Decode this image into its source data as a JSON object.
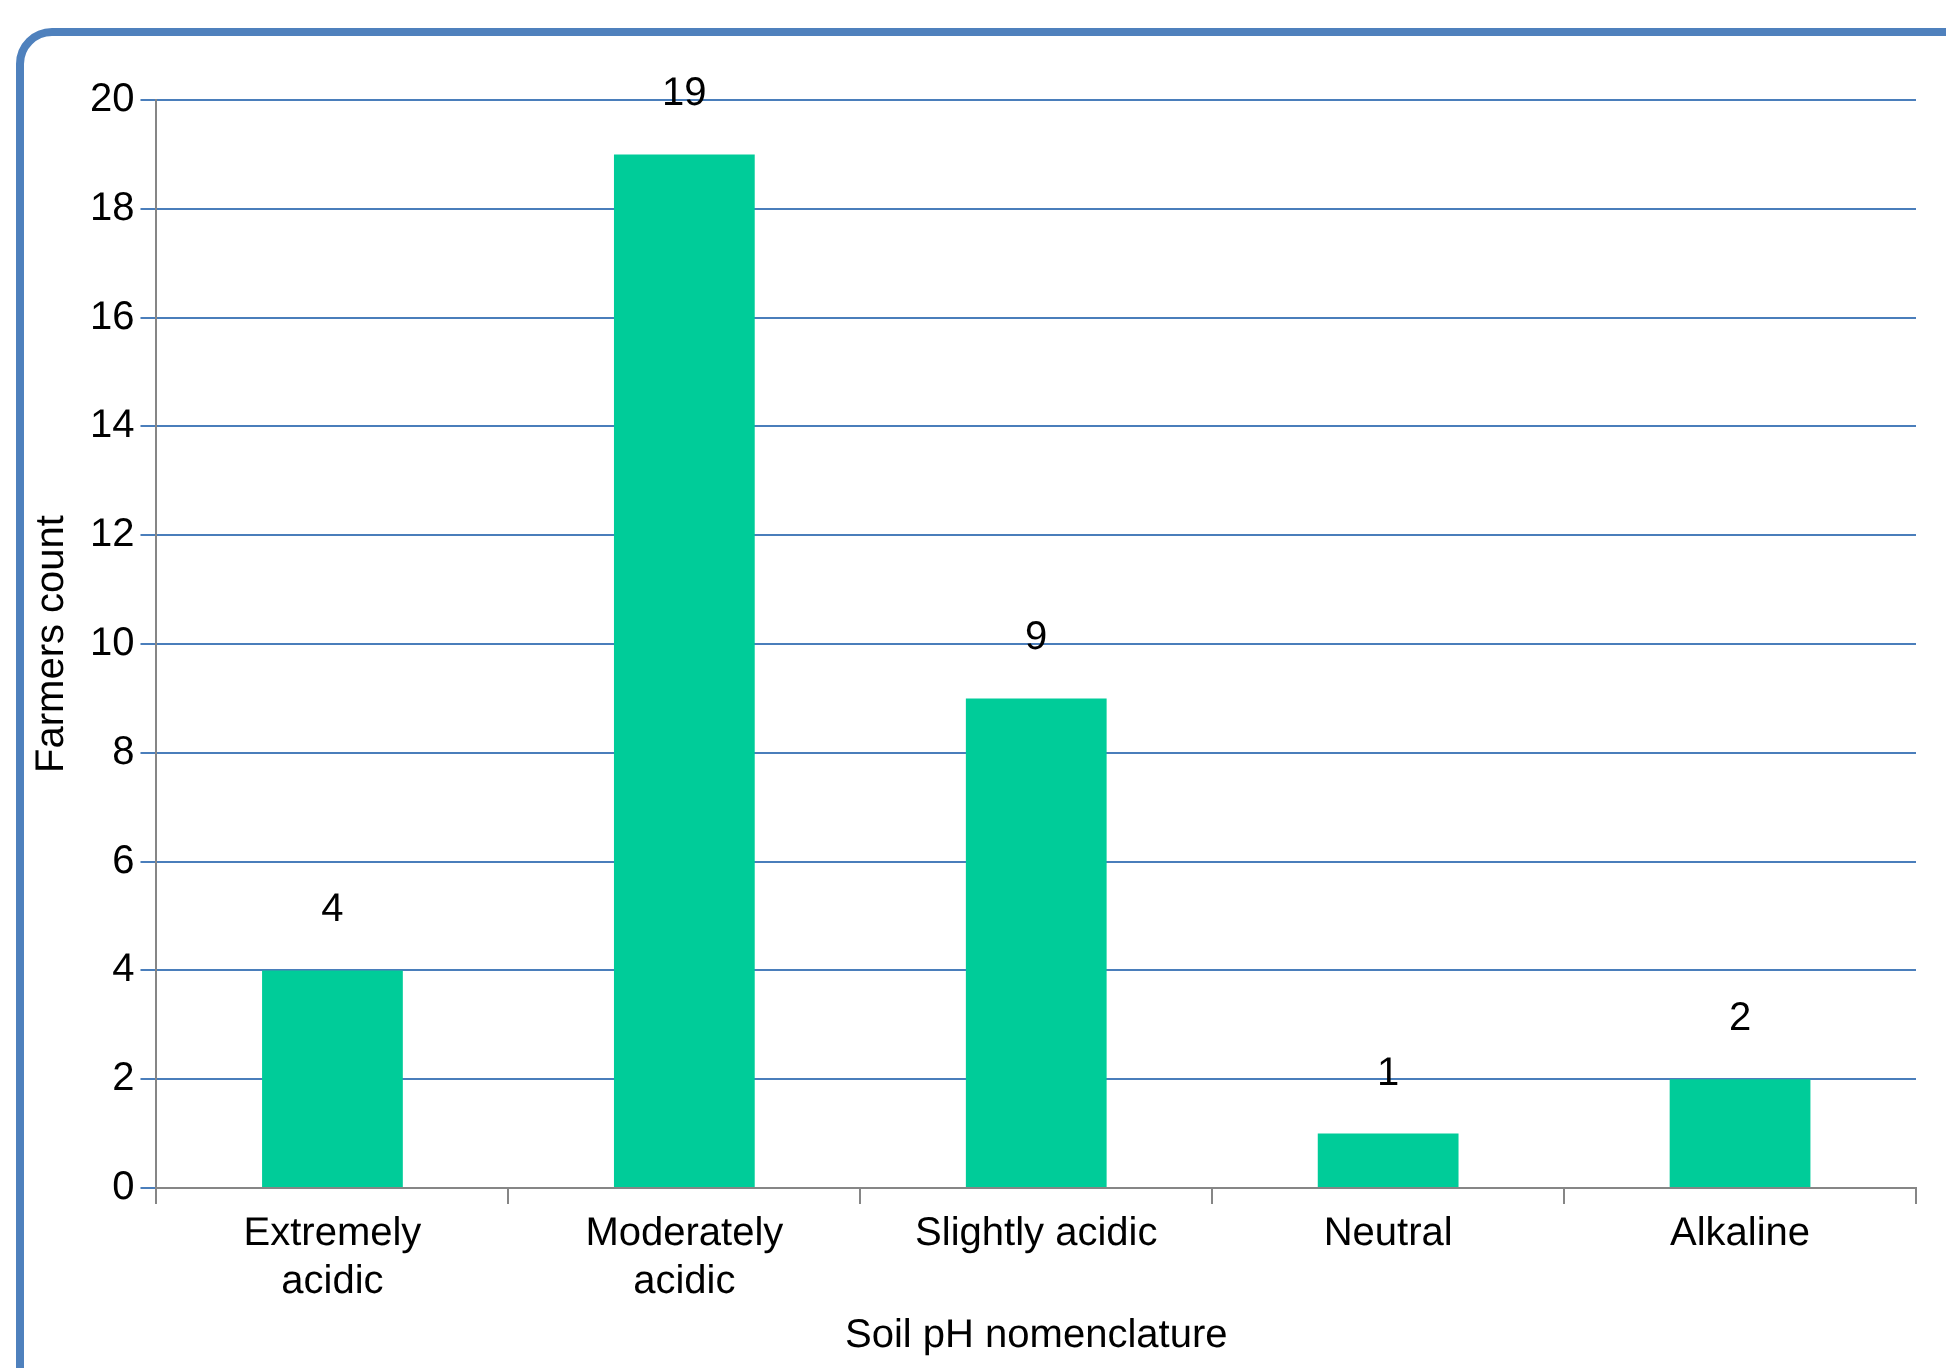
{
  "chart_data": {
    "type": "bar",
    "xlabel": "Soil pH nomenclature",
    "ylabel": "Farmers count",
    "categories": [
      "Extremely\nacidic",
      "Moderately\nacidic",
      "Slightly acidic",
      "Neutral",
      "Alkaline"
    ],
    "values": [
      4,
      19,
      9,
      1,
      2
    ],
    "color": "#00cc99",
    "ylim": [
      0,
      20
    ],
    "yticks": [
      0,
      2,
      4,
      6,
      8,
      10,
      12,
      14,
      16,
      18,
      20
    ],
    "grid": "y",
    "data_labels": true,
    "legend": false
  }
}
